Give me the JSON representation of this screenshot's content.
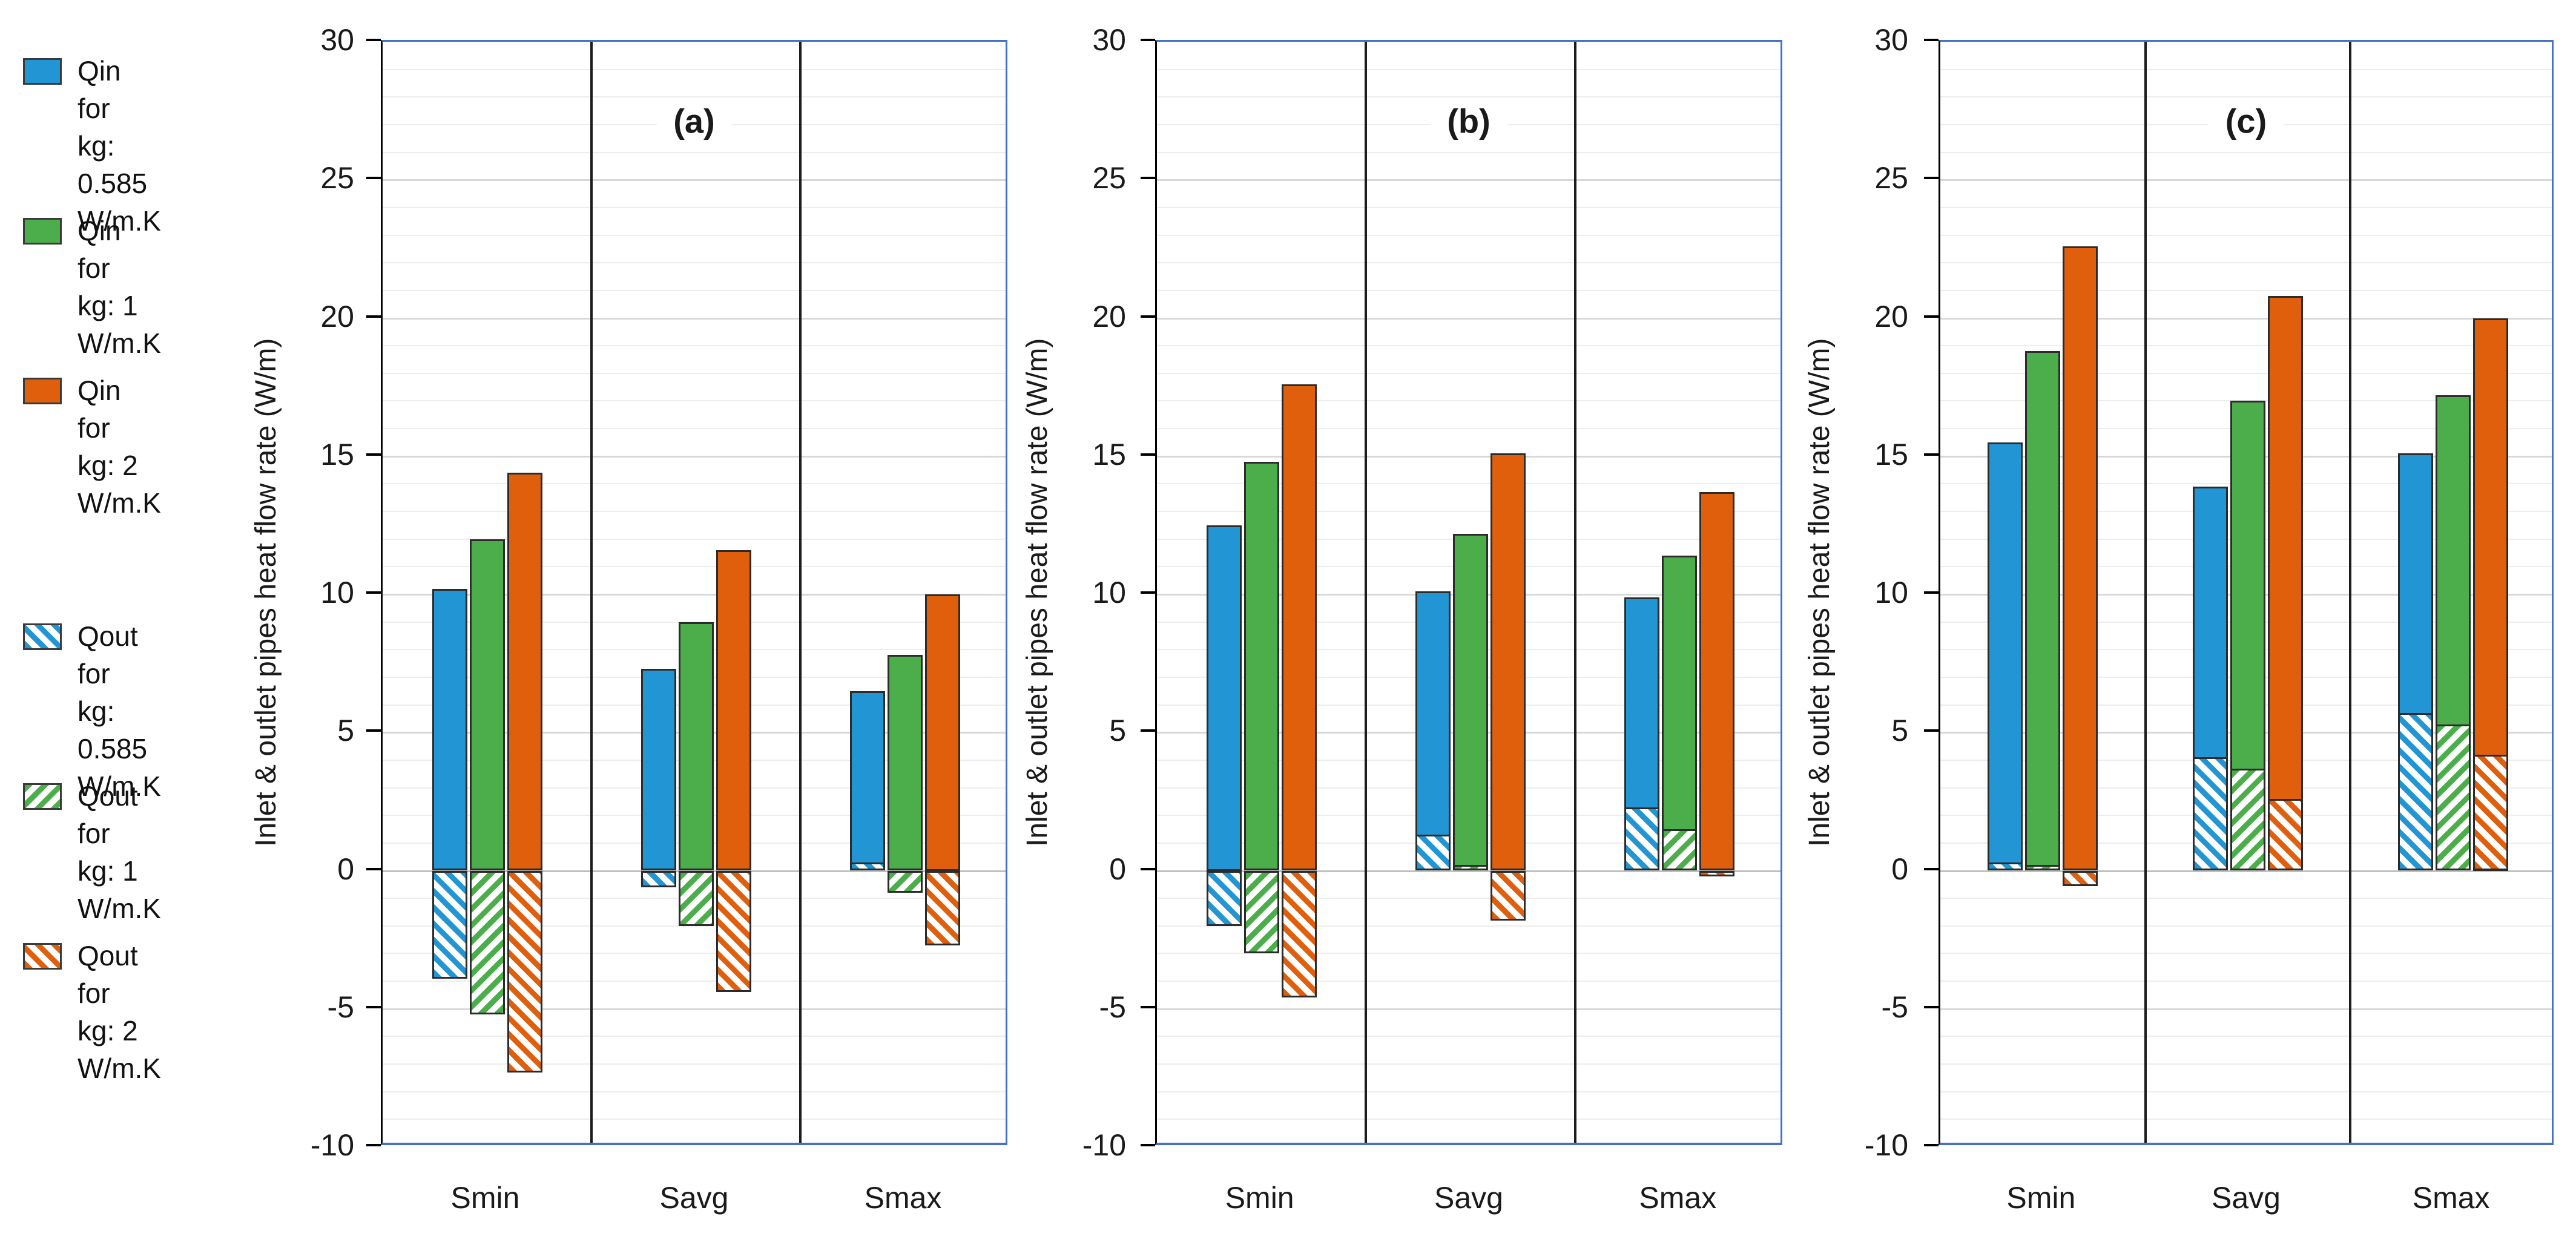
{
  "figure": {
    "y_axis_title": "Inlet & outlet pipes heat flow rate (W/m)",
    "categories": [
      "Smin",
      "Savg",
      "Smax"
    ],
    "panel_letters": [
      "(a)",
      "(b)",
      "(c)"
    ]
  },
  "colors": {
    "blue": "#2296D4",
    "green": "#4CAE4B",
    "orange": "#E05F0D",
    "panel_border": "#4472C4",
    "separator": "#1c1c1c",
    "bar_outline": "#2b2b2b",
    "grid_minor": "#EDEDED",
    "grid_major": "#D8D8D8",
    "grid_zero": "#C0C0C0",
    "text": "#1a1a1a"
  },
  "legend": {
    "items": [
      {
        "name": "qin-kg-0585",
        "style": "solid",
        "color_key": "blue",
        "lines": "Qin  for\nkg: 0.585\nW/m.K"
      },
      {
        "name": "qin-kg-1",
        "style": "solid",
        "color_key": "green",
        "lines": "Qin  for\nkg: 1\nW/m.K"
      },
      {
        "name": "qin-kg-2",
        "style": "solid",
        "color_key": "orange",
        "lines": "Qin  for\nkg: 2\nW/m.K"
      },
      {
        "name": "qout-kg-0585",
        "style": "hatched",
        "color_key": "blue",
        "lines": "Qout  for\nkg: 0.585\nW/m.K"
      },
      {
        "name": "qout-kg-1",
        "style": "hatched",
        "color_key": "green",
        "lines": "Qout  for\nkg: 1\nW/m.K"
      },
      {
        "name": "qout-kg-2",
        "style": "hatched",
        "color_key": "orange",
        "lines": "Qout  for\nkg: 2\nW/m.K"
      }
    ]
  },
  "chart_data": {
    "type": "bar",
    "ylabel": "Inlet & outlet pipes heat flow rate (W/m)",
    "ylim": [
      -10,
      30
    ],
    "y_major_ticks": [
      30,
      25,
      20,
      15,
      10,
      5,
      0,
      -5,
      -10
    ],
    "y_minor_unit": 1,
    "grid": "minor+major",
    "legend_position": "left",
    "categories": [
      "Smin",
      "Savg",
      "Smax"
    ],
    "panels": [
      {
        "label": "(a)",
        "series": [
          {
            "name": "Qin for kg: 0.585 W/m.K",
            "style": "solid",
            "color_key": "blue",
            "values": [
              10.2,
              7.3,
              6.5
            ]
          },
          {
            "name": "Qin for kg: 1 W/m.K",
            "style": "solid",
            "color_key": "green",
            "values": [
              12.0,
              9.0,
              7.8
            ]
          },
          {
            "name": "Qin for kg: 2 W/m.K",
            "style": "solid",
            "color_key": "orange",
            "values": [
              14.4,
              11.6,
              10.0
            ]
          },
          {
            "name": "Qout for kg: 0.585 W/m.K",
            "style": "hatched",
            "color_key": "blue",
            "values": [
              -3.9,
              -0.6,
              0.3
            ]
          },
          {
            "name": "Qout for kg: 1 W/m.K",
            "style": "hatched",
            "color_key": "green",
            "values": [
              -5.2,
              -2.0,
              -0.8
            ]
          },
          {
            "name": "Qout for kg: 2 W/m.K",
            "style": "hatched",
            "color_key": "orange",
            "values": [
              -7.3,
              -4.4,
              -2.7
            ]
          }
        ]
      },
      {
        "label": "(b)",
        "series": [
          {
            "name": "Qin for kg: 0.585 W/m.K",
            "style": "solid",
            "color_key": "blue",
            "values": [
              12.5,
              10.1,
              9.9
            ]
          },
          {
            "name": "Qin for kg: 1 W/m.K",
            "style": "solid",
            "color_key": "green",
            "values": [
              14.8,
              12.2,
              11.4
            ]
          },
          {
            "name": "Qin for kg: 2 W/m.K",
            "style": "solid",
            "color_key": "orange",
            "values": [
              17.6,
              15.1,
              13.7
            ]
          },
          {
            "name": "Qout for kg: 0.585 W/m.K",
            "style": "hatched",
            "color_key": "blue",
            "values": [
              -2.0,
              1.3,
              2.3
            ]
          },
          {
            "name": "Qout for kg: 1 W/m.K",
            "style": "hatched",
            "color_key": "green",
            "values": [
              -3.0,
              0.2,
              1.5
            ]
          },
          {
            "name": "Qout for kg: 2 W/m.K",
            "style": "hatched",
            "color_key": "orange",
            "values": [
              -4.6,
              -1.8,
              -0.2
            ]
          }
        ]
      },
      {
        "label": "(c)",
        "series": [
          {
            "name": "Qin for kg: 0.585 W/m.K",
            "style": "solid",
            "color_key": "blue",
            "values": [
              15.5,
              13.9,
              15.1
            ]
          },
          {
            "name": "Qin for kg: 1 W/m.K",
            "style": "solid",
            "color_key": "green",
            "values": [
              18.8,
              17.0,
              17.2
            ]
          },
          {
            "name": "Qin for kg: 2 W/m.K",
            "style": "solid",
            "color_key": "orange",
            "values": [
              22.6,
              20.8,
              20.0
            ]
          },
          {
            "name": "Qout for kg: 0.585 W/m.K",
            "style": "hatched",
            "color_key": "blue",
            "values": [
              0.3,
              4.1,
              5.7
            ]
          },
          {
            "name": "Qout for kg: 1 W/m.K",
            "style": "hatched",
            "color_key": "green",
            "values": [
              0.2,
              3.7,
              5.3
            ]
          },
          {
            "name": "Qout for kg: 2 W/m.K",
            "style": "hatched",
            "color_key": "orange",
            "values": [
              -0.55,
              2.6,
              4.2
            ]
          }
        ]
      }
    ]
  }
}
